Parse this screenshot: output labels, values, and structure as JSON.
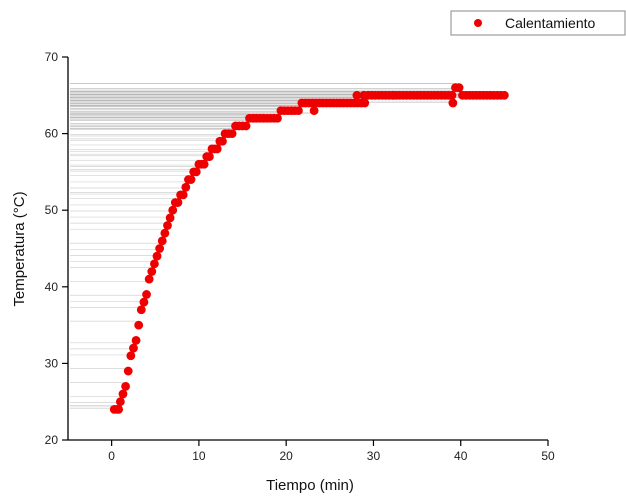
{
  "chart_data": {
    "type": "scatter",
    "title": "",
    "xlabel": "Tiempo (min)",
    "ylabel": "Temperatura (°C)",
    "xlim": [
      -5,
      50
    ],
    "ylim": [
      20,
      70
    ],
    "x_ticks": [
      "0",
      "10",
      "20",
      "30",
      "40",
      "50"
    ],
    "y_ticks": [
      "20",
      "30",
      "40",
      "50",
      "60",
      "70"
    ],
    "grid": false,
    "legend_position": "top-right",
    "marker_color": "#ee0000",
    "series": [
      {
        "name": "Calentamiento",
        "x": [
          0.3,
          0.6,
          0.8,
          1.0,
          1.3,
          1.6,
          1.9,
          2.2,
          2.5,
          2.8,
          3.1,
          3.4,
          3.7,
          4.0,
          4.3,
          4.6,
          4.9,
          5.2,
          5.5,
          5.8,
          6.1,
          6.4,
          6.7,
          7.0,
          7.3,
          7.6,
          7.9,
          8.2,
          8.5,
          8.8,
          9.1,
          9.4,
          9.7,
          10.0,
          10.3,
          10.6,
          10.9,
          11.2,
          11.5,
          11.8,
          12.1,
          12.4,
          12.7,
          13.0,
          13.4,
          13.8,
          14.2,
          14.6,
          15.0,
          15.4,
          15.8,
          16.2,
          16.6,
          17.0,
          17.4,
          17.8,
          18.2,
          18.6,
          19.0,
          19.4,
          19.8,
          20.2,
          20.6,
          21.0,
          21.4,
          21.8,
          22.2,
          22.6,
          23.0,
          23.4,
          23.8,
          24.2,
          24.6,
          25.0,
          25.4,
          25.8,
          26.2,
          26.6,
          27.0,
          27.4,
          27.8,
          28.2,
          28.6,
          29.0,
          29.4,
          29.8,
          30.2,
          30.6,
          31.0,
          31.4,
          31.8,
          32.2,
          32.6,
          33.0,
          33.4,
          33.8,
          34.2,
          34.6,
          35.0,
          35.4,
          35.8,
          36.2,
          36.6,
          37.0,
          37.4,
          37.8,
          38.2,
          38.6,
          39.0,
          39.4,
          39.8,
          40.2,
          40.6,
          41.0,
          41.4,
          41.8,
          42.2,
          42.6,
          43.0,
          43.4,
          43.8,
          44.2,
          44.6,
          45.0,
          28.1,
          28.9,
          32.3,
          39.1,
          39.8,
          23.2
        ],
        "y": [
          24,
          24,
          24,
          25,
          26,
          27,
          29,
          31,
          32,
          33,
          35,
          37,
          38,
          39,
          41,
          42,
          43,
          44,
          45,
          46,
          47,
          48,
          49,
          50,
          51,
          51,
          52,
          52,
          53,
          54,
          54,
          55,
          55,
          56,
          56,
          56,
          57,
          57,
          58,
          58,
          58,
          59,
          59,
          60,
          60,
          60,
          61,
          61,
          61,
          61,
          62,
          62,
          62,
          62,
          62,
          62,
          62,
          62,
          62,
          63,
          63,
          63,
          63,
          63,
          63,
          64,
          64,
          64,
          64,
          64,
          64,
          64,
          64,
          64,
          64,
          64,
          64,
          64,
          64,
          64,
          64,
          64,
          64,
          64,
          65,
          65,
          65,
          65,
          65,
          65,
          65,
          65,
          65,
          65,
          65,
          65,
          65,
          65,
          65,
          65,
          65,
          65,
          65,
          65,
          65,
          65,
          65,
          65,
          65,
          66,
          66,
          65,
          65,
          65,
          65,
          65,
          65,
          65,
          65,
          65,
          65,
          65,
          65,
          65,
          65,
          65,
          65,
          64,
          66,
          63
        ]
      }
    ]
  }
}
